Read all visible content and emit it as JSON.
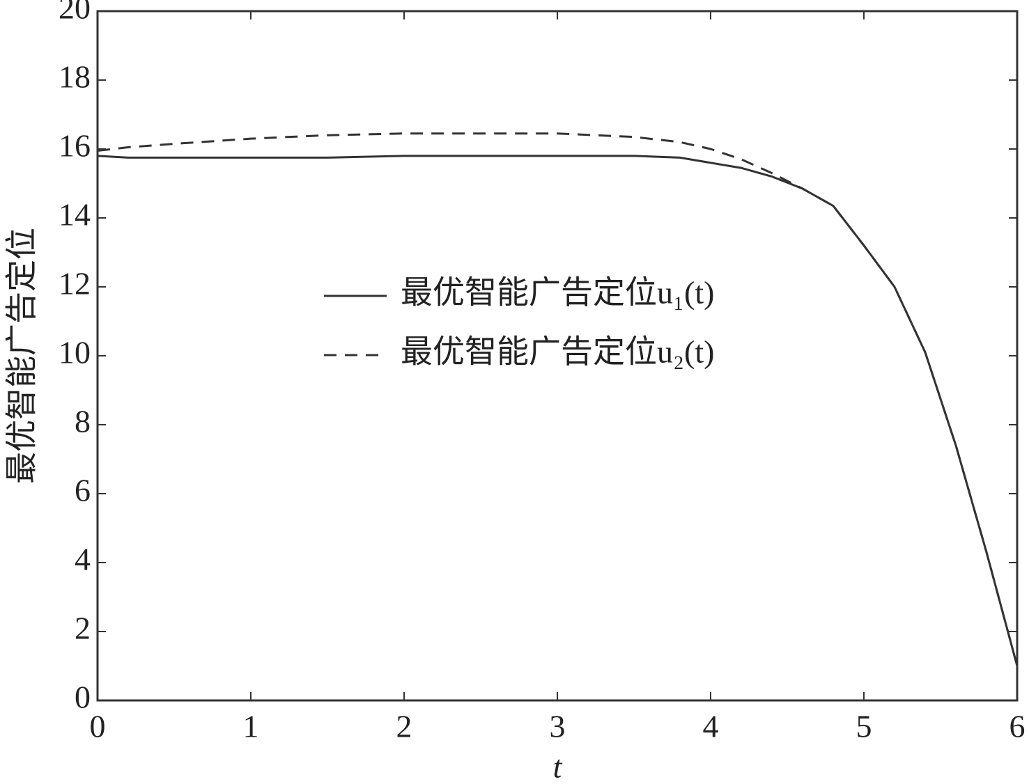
{
  "chart_data": {
    "type": "line",
    "xlabel": "t",
    "ylabel": "最优智能广告定位",
    "xlim": [
      0,
      6
    ],
    "xticks": [
      0,
      1,
      2,
      3,
      4,
      5,
      6
    ],
    "ylim": [
      0,
      20
    ],
    "yticks": [
      0,
      2,
      4,
      6,
      8,
      10,
      12,
      14,
      16,
      18,
      20
    ],
    "grid": false,
    "legend": "center",
    "x": [
      0,
      0.2,
      0.5,
      1,
      1.5,
      2,
      2.5,
      3,
      3.5,
      3.8,
      4,
      4.2,
      4.4,
      4.6,
      4.8,
      5,
      5.2,
      5.4,
      5.6,
      5.8,
      6
    ],
    "series": [
      {
        "name": "最优智能广告定位u₁(t)",
        "color": "#333333",
        "dash": "solid",
        "values": [
          15.8,
          15.75,
          15.75,
          15.75,
          15.75,
          15.8,
          15.8,
          15.8,
          15.8,
          15.75,
          15.6,
          15.45,
          15.2,
          14.85,
          14.35,
          13.2,
          12.0,
          10.1,
          7.4,
          4.3,
          1.0
        ]
      },
      {
        "name": "最优智能广告定位u₂(t)",
        "color": "#333333",
        "dash": "dashed",
        "values": [
          15.95,
          16.05,
          16.15,
          16.3,
          16.4,
          16.45,
          16.45,
          16.45,
          16.35,
          16.2,
          16.0,
          15.7,
          15.3,
          14.85,
          14.35,
          13.2,
          12.0,
          10.1,
          7.4,
          4.3,
          1.0
        ]
      }
    ]
  }
}
